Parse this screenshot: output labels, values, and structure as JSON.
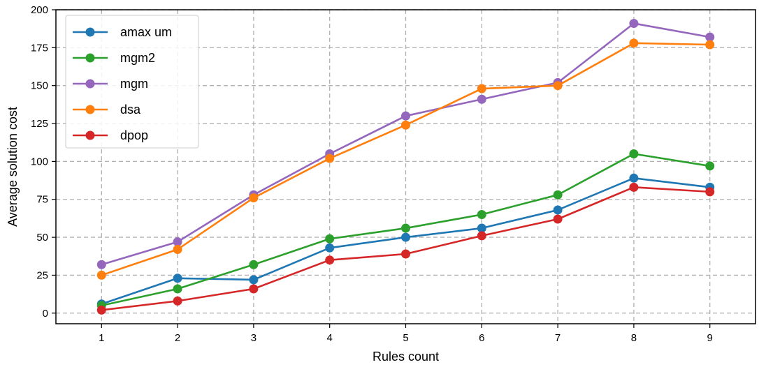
{
  "chart_data": {
    "type": "line",
    "xlabel": "Rules count",
    "ylabel": "Average solution cost",
    "x": [
      1,
      2,
      3,
      4,
      5,
      6,
      7,
      8,
      9
    ],
    "xlim": [
      0.4,
      9.6
    ],
    "ylim": [
      -7,
      200
    ],
    "xticks": [
      "1",
      "2",
      "3",
      "4",
      "5",
      "6",
      "7",
      "8",
      "9"
    ],
    "yticks": [
      "0",
      "25",
      "50",
      "75",
      "100",
      "125",
      "150",
      "175",
      "200"
    ],
    "grid": true,
    "legend_position": "top-left",
    "series": [
      {
        "name": "amax  um",
        "color": "#1f77b4",
        "values": [
          6,
          23,
          22,
          43,
          50,
          56,
          68,
          89,
          83
        ]
      },
      {
        "name": "mgm2",
        "color": "#2ca02c",
        "values": [
          5,
          16,
          32,
          49,
          56,
          65,
          78,
          105,
          97
        ]
      },
      {
        "name": "mgm",
        "color": "#9467bd",
        "values": [
          32,
          47,
          78,
          105,
          130,
          141,
          152,
          191,
          182
        ]
      },
      {
        "name": "dsa",
        "color": "#ff7f0e",
        "values": [
          25,
          42,
          76,
          102,
          124,
          148,
          150,
          178,
          177
        ]
      },
      {
        "name": "dpop",
        "color": "#d62728",
        "values": [
          2,
          8,
          16,
          35,
          39,
          51,
          62,
          83,
          80
        ]
      }
    ]
  }
}
